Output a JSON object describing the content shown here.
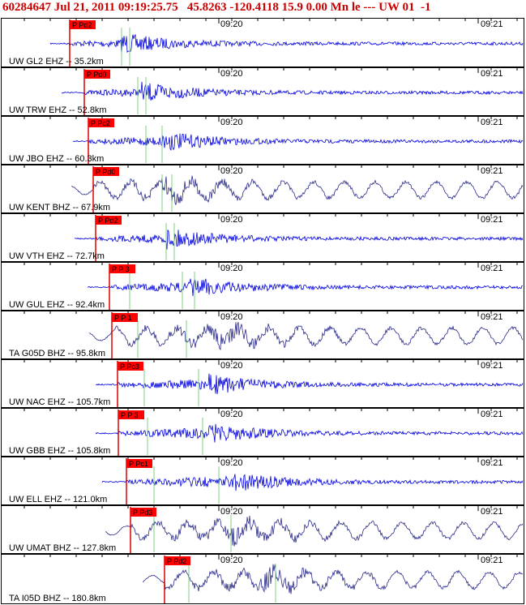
{
  "header": {
    "title": "60284647 Jul 21, 2011 09:19:25.75   45.8263 -120.4118 15.9 0.00 Mn le --- UW 01  -1"
  },
  "time_labels": [
    "09:20",
    "09:21"
  ],
  "panels": [
    {
      "station": "UW GL2 EHZ -- 35.2km",
      "pick": "P Pd2"
    },
    {
      "station": "UW TRW EHZ -- 52.8km",
      "pick": "P Pd0"
    },
    {
      "station": "UW JBO EHZ -- 60.3km",
      "pick": "P Pc2"
    },
    {
      "station": "UW KENT BHZ -- 67.9km",
      "pick": "P Pd0"
    },
    {
      "station": "UW VTH EHZ -- 72.7km",
      "pick": "P Pd2"
    },
    {
      "station": "UW GUL EHZ -- 92.4km",
      "pick": "P P 3"
    },
    {
      "station": "TA G05D BHZ -- 95.8km",
      "pick": "P P 1"
    },
    {
      "station": "UW NAC EHZ -- 105.7km",
      "pick": "P Pc3"
    },
    {
      "station": "UW GBB EHZ -- 105.8km",
      "pick": "P P 3"
    },
    {
      "station": "UW ELL EHZ -- 121.0km",
      "pick": "P Pc1"
    },
    {
      "station": "UW UMAT BHZ -- 127.8km",
      "pick": "P Pd3"
    },
    {
      "station": "TA I05D BHZ -- 180.8km",
      "pick": "P Pd2"
    }
  ]
}
